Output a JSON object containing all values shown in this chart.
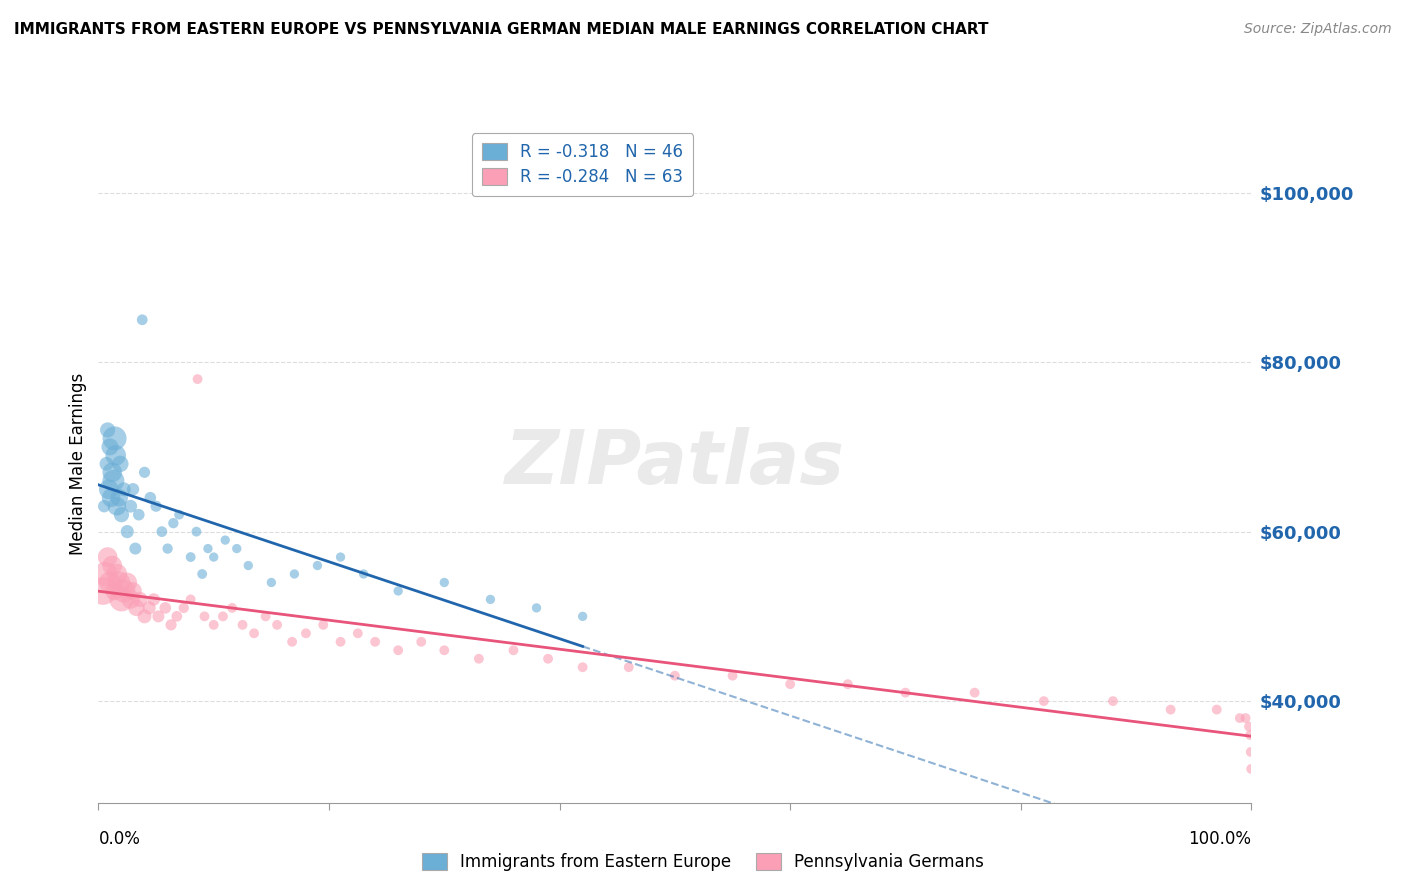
{
  "title": "IMMIGRANTS FROM EASTERN EUROPE VS PENNSYLVANIA GERMAN MEDIAN MALE EARNINGS CORRELATION CHART",
  "source": "Source: ZipAtlas.com",
  "ylabel": "Median Male Earnings",
  "legend1_R": "R = -0.318",
  "legend1_N": "N = 46",
  "legend2_R": "R = -0.284",
  "legend2_N": "N = 63",
  "blue_color": "#6baed6",
  "pink_color": "#fa9fb5",
  "blue_line_color": "#2166ac",
  "pink_line_color": "#e8547a",
  "yticks": [
    40000,
    60000,
    80000,
    100000
  ],
  "ytick_labels": [
    "$40,000",
    "$60,000",
    "$80,000",
    "$100,000"
  ],
  "xmin": 0.0,
  "xmax": 1.0,
  "ymin": 28000,
  "ymax": 108000,
  "blue_x": [
    0.005,
    0.007,
    0.008,
    0.009,
    0.01,
    0.011,
    0.012,
    0.013,
    0.014,
    0.015,
    0.016,
    0.018,
    0.019,
    0.02,
    0.022,
    0.025,
    0.028,
    0.03,
    0.032,
    0.035,
    0.038,
    0.04,
    0.045,
    0.05,
    0.055,
    0.06,
    0.065,
    0.07,
    0.08,
    0.085,
    0.09,
    0.095,
    0.1,
    0.11,
    0.12,
    0.13,
    0.15,
    0.17,
    0.19,
    0.21,
    0.23,
    0.26,
    0.3,
    0.34,
    0.38,
    0.42
  ],
  "blue_y": [
    63000,
    68000,
    72000,
    65000,
    70000,
    64000,
    67000,
    66000,
    71000,
    69000,
    63000,
    64000,
    68000,
    62000,
    65000,
    60000,
    63000,
    65000,
    58000,
    62000,
    85000,
    67000,
    64000,
    63000,
    60000,
    58000,
    61000,
    62000,
    57000,
    60000,
    55000,
    58000,
    57000,
    59000,
    58000,
    56000,
    54000,
    55000,
    56000,
    57000,
    55000,
    53000,
    54000,
    52000,
    51000,
    50000
  ],
  "blue_size": [
    80,
    100,
    120,
    200,
    150,
    180,
    200,
    250,
    300,
    220,
    180,
    160,
    140,
    120,
    100,
    90,
    85,
    80,
    75,
    70,
    60,
    65,
    70,
    65,
    60,
    55,
    55,
    50,
    50,
    50,
    50,
    45,
    45,
    45,
    45,
    45,
    45,
    45,
    45,
    45,
    45,
    45,
    45,
    45,
    45,
    45
  ],
  "pink_x": [
    0.004,
    0.006,
    0.008,
    0.01,
    0.012,
    0.014,
    0.016,
    0.018,
    0.02,
    0.022,
    0.025,
    0.028,
    0.03,
    0.033,
    0.036,
    0.04,
    0.044,
    0.048,
    0.052,
    0.058,
    0.063,
    0.068,
    0.074,
    0.08,
    0.086,
    0.092,
    0.1,
    0.108,
    0.116,
    0.125,
    0.135,
    0.145,
    0.155,
    0.168,
    0.18,
    0.195,
    0.21,
    0.225,
    0.24,
    0.26,
    0.28,
    0.3,
    0.33,
    0.36,
    0.39,
    0.42,
    0.46,
    0.5,
    0.55,
    0.6,
    0.65,
    0.7,
    0.76,
    0.82,
    0.88,
    0.93,
    0.97,
    0.99,
    0.995,
    0.998,
    0.999,
    0.9995,
    0.9999
  ],
  "pink_y": [
    53000,
    55000,
    57000,
    54000,
    56000,
    53000,
    55000,
    54000,
    52000,
    53000,
    54000,
    52000,
    53000,
    51000,
    52000,
    50000,
    51000,
    52000,
    50000,
    51000,
    49000,
    50000,
    51000,
    52000,
    78000,
    50000,
    49000,
    50000,
    51000,
    49000,
    48000,
    50000,
    49000,
    47000,
    48000,
    49000,
    47000,
    48000,
    47000,
    46000,
    47000,
    46000,
    45000,
    46000,
    45000,
    44000,
    44000,
    43000,
    43000,
    42000,
    42000,
    41000,
    41000,
    40000,
    40000,
    39000,
    39000,
    38000,
    38000,
    37000,
    36000,
    34000,
    32000
  ],
  "pink_size": [
    400,
    300,
    200,
    250,
    200,
    180,
    220,
    250,
    300,
    280,
    200,
    180,
    160,
    140,
    120,
    100,
    90,
    80,
    75,
    70,
    65,
    60,
    55,
    50,
    50,
    50,
    50,
    50,
    50,
    50,
    50,
    50,
    50,
    50,
    50,
    50,
    50,
    50,
    50,
    50,
    50,
    50,
    50,
    50,
    50,
    50,
    50,
    50,
    50,
    50,
    50,
    50,
    50,
    50,
    50,
    50,
    50,
    50,
    50,
    50,
    50,
    50,
    50
  ],
  "watermark": "ZIPatlas",
  "watermark_color": "#cccccc",
  "bottom_legend": [
    "Immigrants from Eastern Europe",
    "Pennsylvania Germans"
  ]
}
